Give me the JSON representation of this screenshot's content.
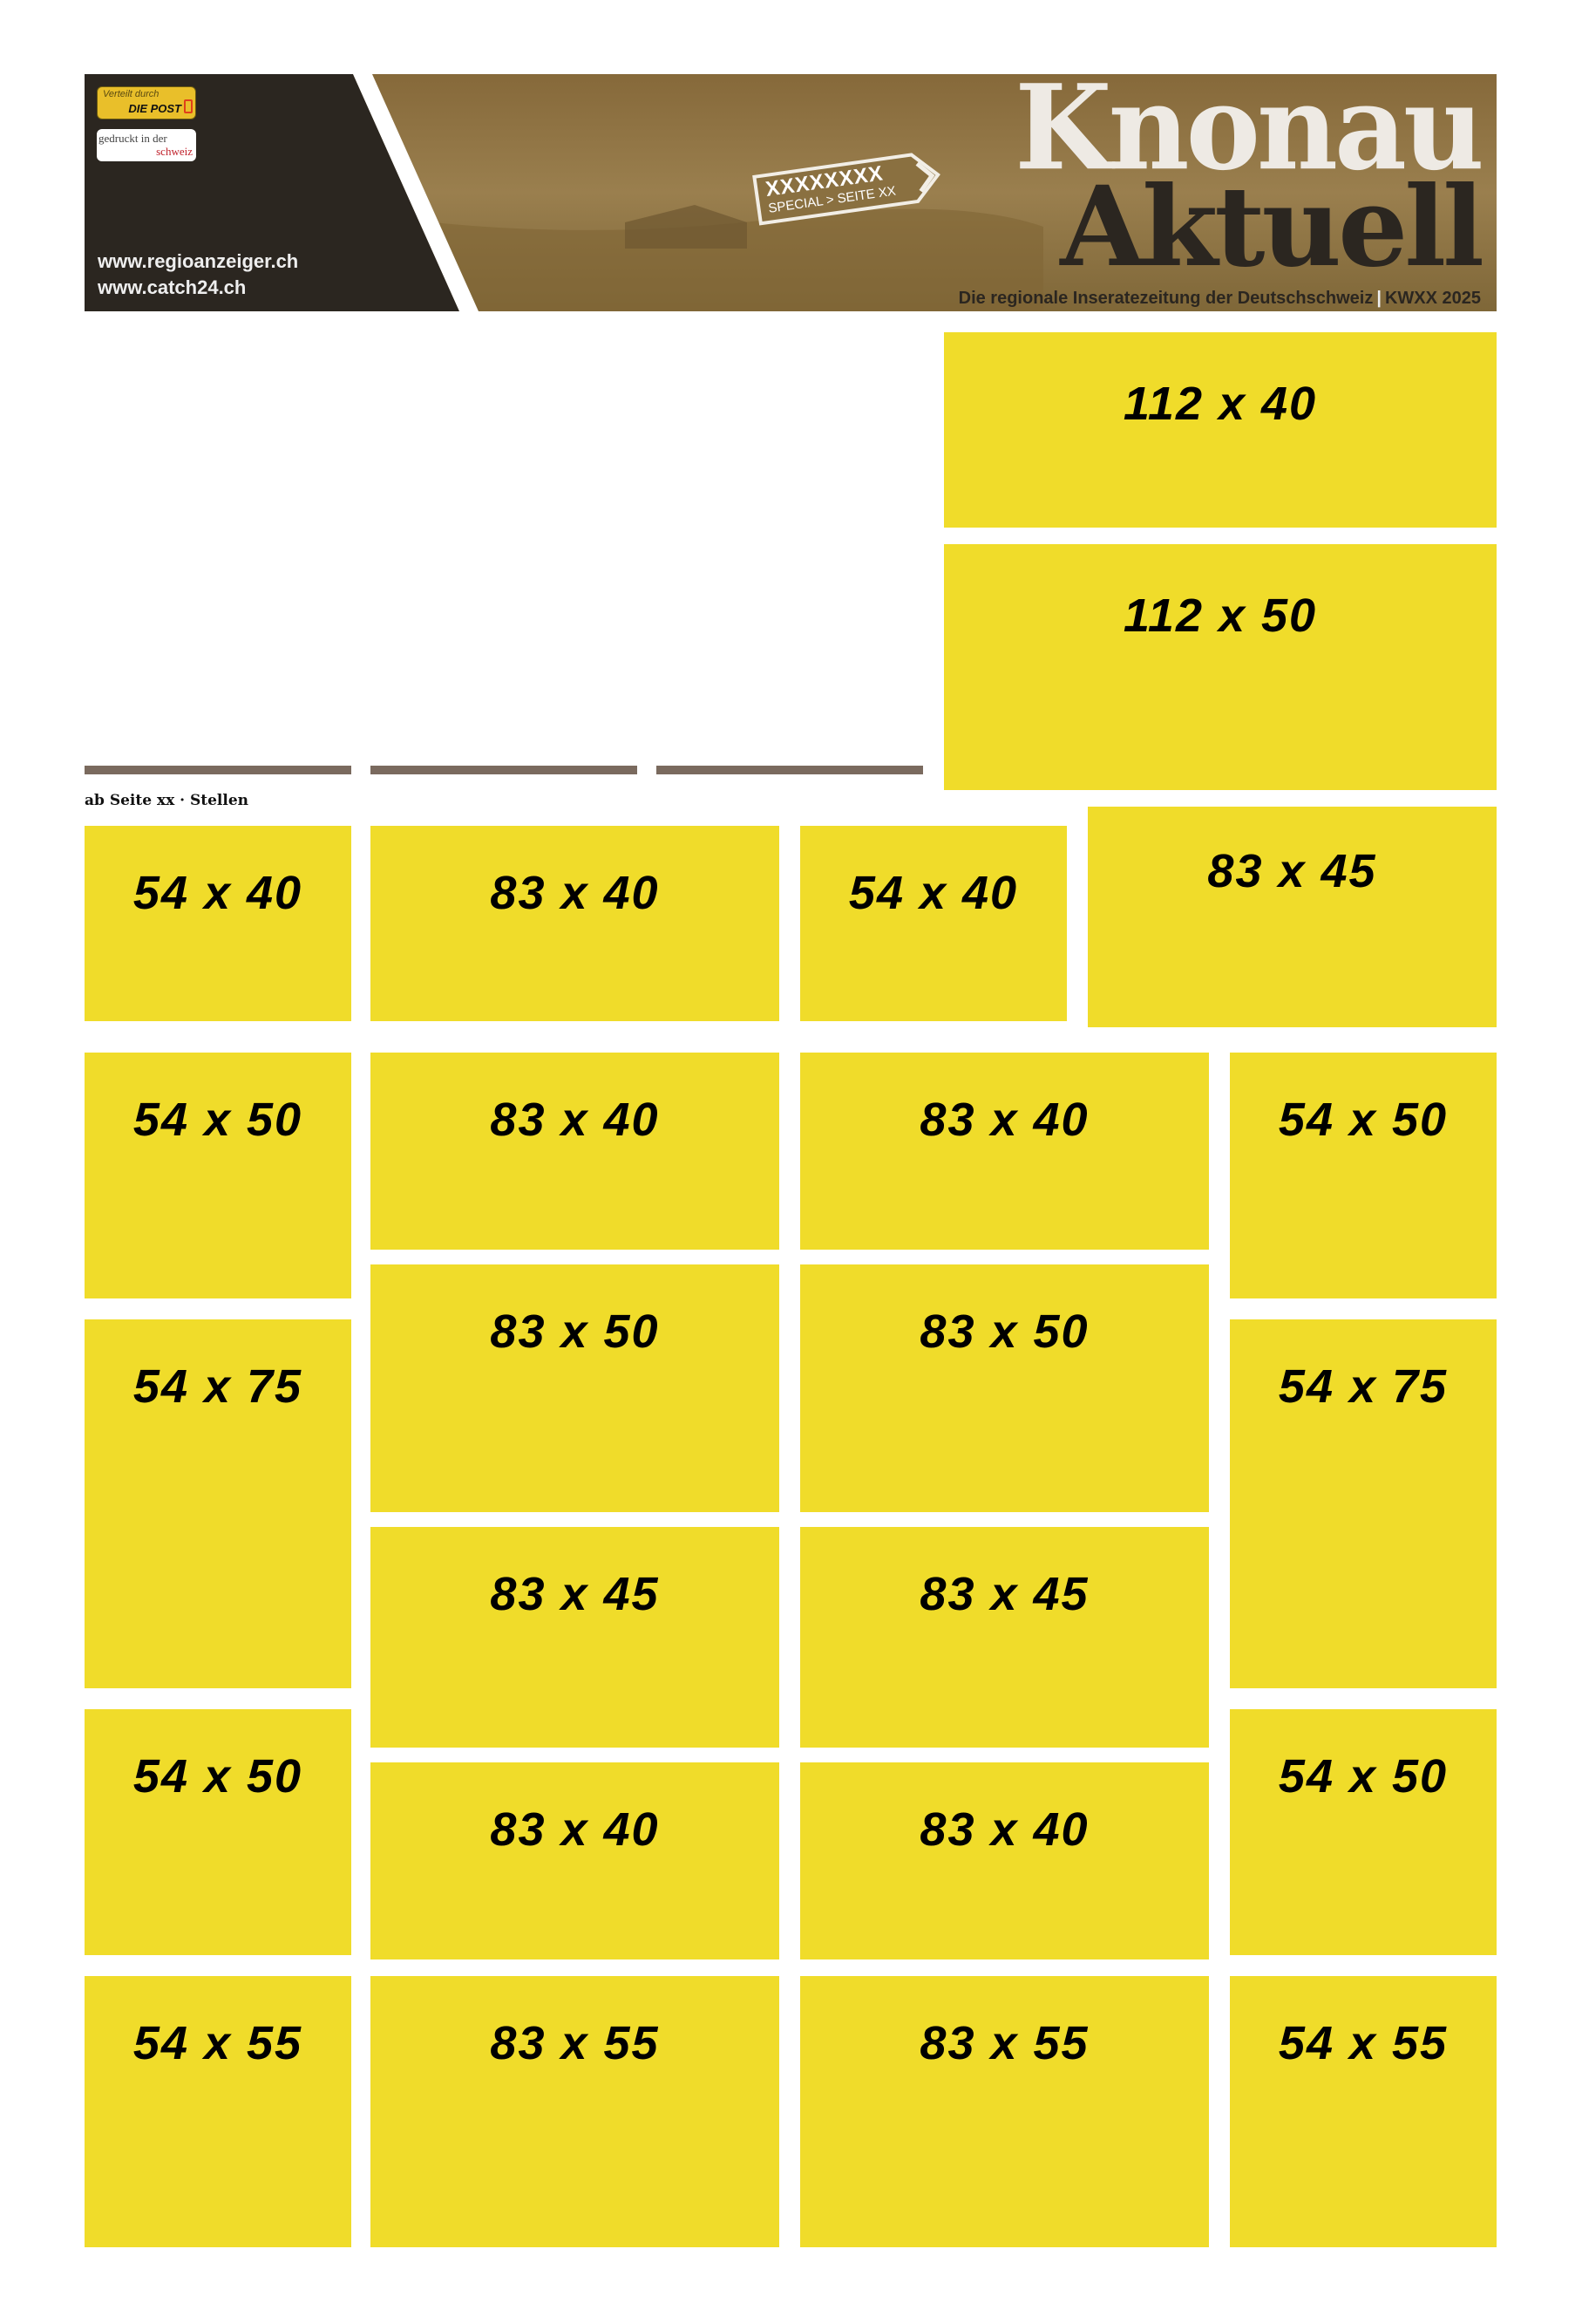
{
  "header": {
    "badge_post_line1": "Verteilt durch",
    "badge_post_line2": "DIE POST",
    "badge_swiss_line1": "gedruckt in der",
    "badge_swiss_line2": "schweiz",
    "url1": "www.regioanzeiger.ch",
    "url2": "www.catch24.ch",
    "sign_title": "XXXXXXXX",
    "sign_sub": "SPECIAL > SEITE XX",
    "title_line1": "Knonau",
    "title_line2": "Aktuell",
    "tagline": "Die regionale Inseratezeitung der Deutschschweiz",
    "edition": "KWXX 2025"
  },
  "section_label": "ab Seite xx · Stellen",
  "colors": {
    "ad_fill": "#f0dc2a",
    "header_dark": "#2b2620",
    "header_brown": "#8a703f",
    "divider": "#7a6a5e"
  },
  "ads": [
    {
      "label": "112 x 40"
    },
    {
      "label": "112 x 50"
    },
    {
      "label": "54 x 40"
    },
    {
      "label": "83 x 40"
    },
    {
      "label": "54 x 40"
    },
    {
      "label": "83 x 45"
    },
    {
      "label": "54 x 50"
    },
    {
      "label": "83 x 40"
    },
    {
      "label": "83 x 40"
    },
    {
      "label": "54 x 50"
    },
    {
      "label": "83 x 50"
    },
    {
      "label": "83 x 50"
    },
    {
      "label": "54 x 75"
    },
    {
      "label": "54 x 75"
    },
    {
      "label": "83 x 45"
    },
    {
      "label": "83 x 45"
    },
    {
      "label": "54 x 50"
    },
    {
      "label": "54 x 50"
    },
    {
      "label": "83 x 40"
    },
    {
      "label": "83 x 40"
    },
    {
      "label": "54 x 55"
    },
    {
      "label": "83 x 55"
    },
    {
      "label": "83 x 55"
    },
    {
      "label": "54 x 55"
    }
  ]
}
